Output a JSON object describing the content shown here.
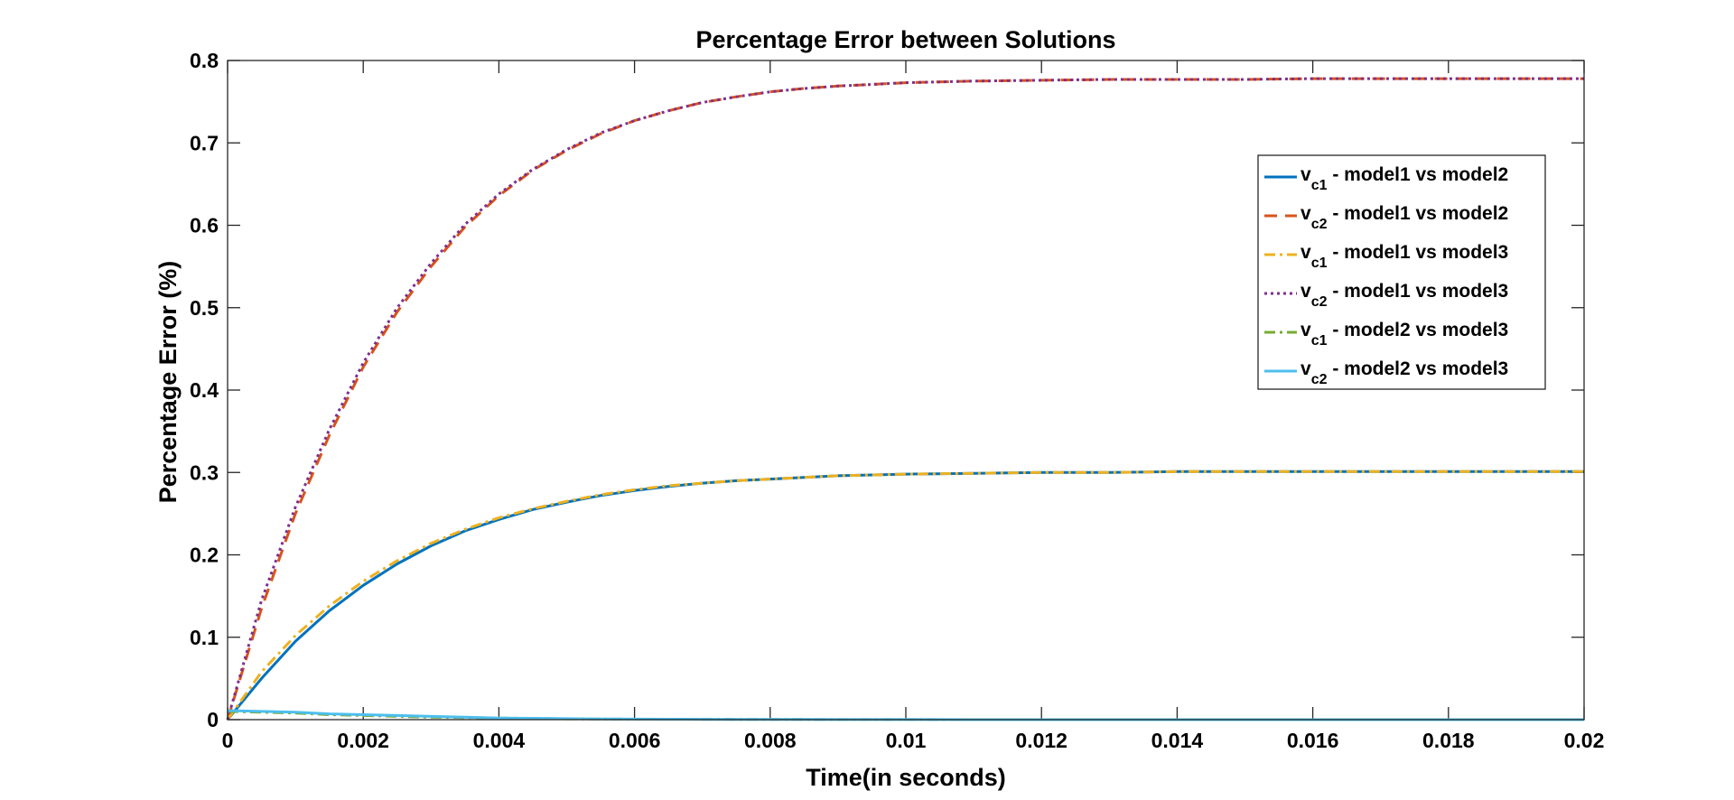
{
  "chart_data": {
    "type": "line",
    "title": "Percentage Error between Solutions",
    "xlabel": "Time(in seconds)",
    "ylabel": "Percentage Error (%)",
    "xlim": [
      0,
      0.02
    ],
    "ylim": [
      0,
      0.8
    ],
    "xticks": [
      0,
      0.002,
      0.004,
      0.006,
      0.008,
      0.01,
      0.012,
      0.014,
      0.016,
      0.018,
      0.02
    ],
    "xtick_labels": [
      "0",
      "0.002",
      "0.004",
      "0.006",
      "0.008",
      "0.01",
      "0.012",
      "0.014",
      "0.016",
      "0.018",
      "0.02"
    ],
    "yticks": [
      0,
      0.1,
      0.2,
      0.3,
      0.4,
      0.5,
      0.6,
      0.7,
      0.8
    ],
    "ytick_labels": [
      "0",
      "0.1",
      "0.2",
      "0.3",
      "0.4",
      "0.5",
      "0.6",
      "0.7",
      "0.8"
    ],
    "grid": false,
    "legend_position": "top-right",
    "x": [
      0,
      0.0005,
      0.001,
      0.0015,
      0.002,
      0.0025,
      0.003,
      0.0035,
      0.004,
      0.0045,
      0.005,
      0.0055,
      0.006,
      0.0065,
      0.007,
      0.0075,
      0.008,
      0.0085,
      0.009,
      0.0095,
      0.01,
      0.011,
      0.012,
      0.013,
      0.014,
      0.015,
      0.016,
      0.017,
      0.018,
      0.019,
      0.02
    ],
    "series": [
      {
        "name_main": "v",
        "name_sub": "c1",
        "name_rest": " - model1 vs model2",
        "color": "#0072BD",
        "dash": "solid",
        "values": [
          0,
          0.05,
          0.095,
          0.132,
          0.163,
          0.189,
          0.211,
          0.229,
          0.243,
          0.255,
          0.264,
          0.272,
          0.278,
          0.283,
          0.287,
          0.29,
          0.292,
          0.294,
          0.296,
          0.297,
          0.298,
          0.299,
          0.3,
          0.3,
          0.301,
          0.301,
          0.301,
          0.301,
          0.301,
          0.301,
          0.301
        ]
      },
      {
        "name_main": "v",
        "name_sub": "c2",
        "name_rest": " - model1 vs model2",
        "color": "#D95319",
        "dash": "dashed",
        "values": [
          0,
          0.135,
          0.25,
          0.345,
          0.428,
          0.495,
          0.55,
          0.598,
          0.636,
          0.667,
          0.691,
          0.711,
          0.727,
          0.739,
          0.749,
          0.756,
          0.762,
          0.766,
          0.769,
          0.771,
          0.773,
          0.775,
          0.776,
          0.777,
          0.777,
          0.777,
          0.778,
          0.778,
          0.778,
          0.778,
          0.778
        ]
      },
      {
        "name_main": "v",
        "name_sub": "c1",
        "name_rest": " - model1 vs model3",
        "color": "#EDB120",
        "dash": "dashdot",
        "values": [
          0,
          0.058,
          0.102,
          0.138,
          0.168,
          0.193,
          0.214,
          0.231,
          0.245,
          0.256,
          0.265,
          0.273,
          0.279,
          0.284,
          0.287,
          0.29,
          0.292,
          0.294,
          0.296,
          0.297,
          0.298,
          0.299,
          0.3,
          0.3,
          0.301,
          0.301,
          0.301,
          0.301,
          0.301,
          0.301,
          0.301
        ]
      },
      {
        "name_main": "v",
        "name_sub": "c2",
        "name_rest": " - model1 vs model3",
        "color": "#7E2F8E",
        "dash": "dotted",
        "values": [
          0,
          0.145,
          0.258,
          0.352,
          0.433,
          0.5,
          0.554,
          0.601,
          0.638,
          0.668,
          0.692,
          0.712,
          0.727,
          0.739,
          0.749,
          0.756,
          0.762,
          0.766,
          0.769,
          0.771,
          0.773,
          0.775,
          0.776,
          0.777,
          0.777,
          0.777,
          0.778,
          0.778,
          0.778,
          0.778,
          0.778
        ]
      },
      {
        "name_main": "v",
        "name_sub": "c1",
        "name_rest": " - model2 vs model3",
        "color": "#77AC30",
        "dash": "dashdot",
        "values": [
          0.01,
          0.009,
          0.008,
          0.006,
          0.005,
          0.004,
          0.003,
          0.0025,
          0.002,
          0.0015,
          0.001,
          0.0008,
          0.0006,
          0.0005,
          0.0004,
          0.0003,
          0.0002,
          0.0002,
          0.0001,
          0.0001,
          0.0001,
          0,
          0,
          0,
          0,
          0,
          0,
          0,
          0,
          0,
          0
        ]
      },
      {
        "name_main": "v",
        "name_sub": "c2",
        "name_rest": " - model2 vs model3",
        "color": "#4DBEEE",
        "dash": "solid",
        "values": [
          0.011,
          0.01,
          0.009,
          0.007,
          0.006,
          0.005,
          0.004,
          0.003,
          0.002,
          0.0016,
          0.0012,
          0.0009,
          0.0007,
          0.0005,
          0.0004,
          0.0003,
          0.0002,
          0.0002,
          0.0001,
          0.0001,
          0.0001,
          0,
          0,
          0,
          0,
          0,
          0,
          0,
          0,
          0,
          0
        ]
      }
    ]
  }
}
